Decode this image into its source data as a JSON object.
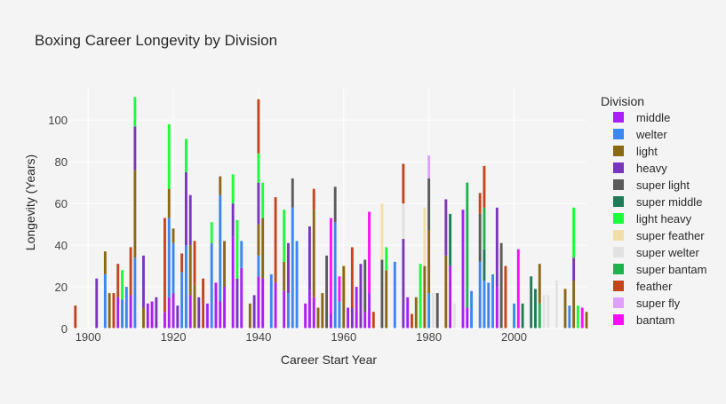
{
  "chart_data": {
    "type": "bar",
    "barmode": "stack",
    "title": "Boxing Career Longevity by Division",
    "xlabel": "Career Start Year",
    "ylabel": "Longevity (Years)",
    "xlim": [
      1896,
      2017
    ],
    "ylim": [
      0,
      115
    ],
    "xticks": [
      1900,
      1920,
      1940,
      1960,
      1980,
      2000
    ],
    "yticks": [
      0,
      20,
      40,
      60,
      80,
      100
    ],
    "grid": true,
    "legend_title": "Division",
    "legend_position": "right",
    "series": [
      {
        "name": "middle",
        "color": "#ab1ff7"
      },
      {
        "name": "welter",
        "color": "#3b86f0"
      },
      {
        "name": "light",
        "color": "#8b6914"
      },
      {
        "name": "heavy",
        "color": "#7a35bd"
      },
      {
        "name": "super light",
        "color": "#5a5a5a"
      },
      {
        "name": "super middle",
        "color": "#1f7a57"
      },
      {
        "name": "light heavy",
        "color": "#1cff38"
      },
      {
        "name": "super feather",
        "color": "#f2deaa"
      },
      {
        "name": "super welter",
        "color": "#e2e2e2"
      },
      {
        "name": "super bantam",
        "color": "#1fb350"
      },
      {
        "name": "feather",
        "color": "#c4451c"
      },
      {
        "name": "super fly",
        "color": "#dda0fb"
      },
      {
        "name": "bantam",
        "color": "#fc0dfc"
      }
    ],
    "bars": [
      {
        "x": 1897,
        "segments": [
          [
            "feather",
            11
          ]
        ]
      },
      {
        "x": 1902,
        "segments": [
          [
            "heavy",
            24
          ]
        ]
      },
      {
        "x": 1904,
        "segments": [
          [
            "welter",
            26
          ],
          [
            "light",
            11
          ]
        ]
      },
      {
        "x": 1905,
        "segments": [
          [
            "light",
            17
          ]
        ]
      },
      {
        "x": 1906,
        "segments": [
          [
            "feather",
            17
          ]
        ]
      },
      {
        "x": 1907,
        "segments": [
          [
            "middle",
            15
          ],
          [
            "feather",
            16
          ]
        ]
      },
      {
        "x": 1908,
        "segments": [
          [
            "welter",
            14
          ],
          [
            "light heavy",
            14
          ]
        ]
      },
      {
        "x": 1909,
        "segments": [
          [
            "welter",
            20
          ]
        ]
      },
      {
        "x": 1910,
        "segments": [
          [
            "middle",
            16
          ],
          [
            "feather",
            23
          ]
        ]
      },
      {
        "x": 1911,
        "segments": [
          [
            "welter",
            34
          ],
          [
            "light",
            42
          ],
          [
            "heavy",
            21
          ],
          [
            "light heavy",
            14
          ]
        ]
      },
      {
        "x": 1913,
        "segments": [
          [
            "light",
            10
          ],
          [
            "heavy",
            25
          ]
        ]
      },
      {
        "x": 1914,
        "segments": [
          [
            "middle",
            12
          ]
        ]
      },
      {
        "x": 1915,
        "segments": [
          [
            "middle",
            13
          ]
        ]
      },
      {
        "x": 1916,
        "segments": [
          [
            "heavy",
            15
          ]
        ]
      },
      {
        "x": 1918,
        "segments": [
          [
            "middle",
            8
          ],
          [
            "feather",
            45
          ]
        ]
      },
      {
        "x": 1919,
        "segments": [
          [
            "middle",
            15
          ],
          [
            "welter",
            38
          ],
          [
            "light",
            14
          ],
          [
            "light heavy",
            31
          ]
        ]
      },
      {
        "x": 1920,
        "segments": [
          [
            "middle",
            17
          ],
          [
            "welter",
            24
          ],
          [
            "light",
            7
          ]
        ]
      },
      {
        "x": 1921,
        "segments": [
          [
            "heavy",
            11
          ]
        ]
      },
      {
        "x": 1922,
        "segments": [
          [
            "welter",
            27
          ],
          [
            "feather",
            9
          ]
        ]
      },
      {
        "x": 1923,
        "segments": [
          [
            "welter",
            40
          ],
          [
            "heavy",
            35
          ],
          [
            "light heavy",
            16
          ]
        ]
      },
      {
        "x": 1924,
        "segments": [
          [
            "middle",
            16
          ],
          [
            "light",
            24
          ],
          [
            "heavy",
            24
          ]
        ]
      },
      {
        "x": 1925,
        "segments": [
          [
            "light",
            21
          ],
          [
            "feather",
            21
          ]
        ]
      },
      {
        "x": 1926,
        "segments": [
          [
            "heavy",
            15
          ]
        ]
      },
      {
        "x": 1927,
        "segments": [
          [
            "feather",
            24
          ]
        ]
      },
      {
        "x": 1928,
        "segments": [
          [
            "middle",
            12
          ]
        ]
      },
      {
        "x": 1929,
        "segments": [
          [
            "welter",
            41
          ],
          [
            "light heavy",
            10
          ]
        ]
      },
      {
        "x": 1930,
        "segments": [
          [
            "middle",
            22
          ]
        ]
      },
      {
        "x": 1931,
        "segments": [
          [
            "middle",
            13
          ],
          [
            "welter",
            51
          ],
          [
            "light",
            9
          ]
        ]
      },
      {
        "x": 1932,
        "segments": [
          [
            "middle",
            20
          ],
          [
            "light",
            22
          ]
        ]
      },
      {
        "x": 1934,
        "segments": [
          [
            "middle",
            44
          ],
          [
            "heavy",
            16
          ],
          [
            "light heavy",
            14
          ]
        ]
      },
      {
        "x": 1935,
        "segments": [
          [
            "heavy",
            24
          ],
          [
            "light heavy",
            28
          ]
        ]
      },
      {
        "x": 1936,
        "segments": [
          [
            "middle",
            29
          ],
          [
            "welter",
            13
          ]
        ]
      },
      {
        "x": 1938,
        "segments": [
          [
            "light",
            12
          ]
        ]
      },
      {
        "x": 1939,
        "segments": [
          [
            "heavy",
            16
          ]
        ]
      },
      {
        "x": 1940,
        "segments": [
          [
            "middle",
            25
          ],
          [
            "welter",
            10
          ],
          [
            "light",
            15
          ],
          [
            "heavy",
            20
          ],
          [
            "light heavy",
            14
          ],
          [
            "feather",
            26
          ]
        ]
      },
      {
        "x": 1941,
        "segments": [
          [
            "middle",
            24
          ],
          [
            "light",
            29
          ],
          [
            "light heavy",
            17
          ]
        ]
      },
      {
        "x": 1943,
        "segments": [
          [
            "welter",
            26
          ]
        ]
      },
      {
        "x": 1944,
        "segments": [
          [
            "middle",
            22
          ],
          [
            "feather",
            41
          ]
        ]
      },
      {
        "x": 1946,
        "segments": [
          [
            "middle",
            18
          ],
          [
            "light",
            14
          ],
          [
            "light heavy",
            25
          ]
        ]
      },
      {
        "x": 1947,
        "segments": [
          [
            "welter",
            17
          ],
          [
            "heavy",
            24
          ]
        ]
      },
      {
        "x": 1948,
        "segments": [
          [
            "welter",
            58
          ],
          [
            "super light",
            14
          ]
        ]
      },
      {
        "x": 1949,
        "segments": [
          [
            "welter",
            42
          ]
        ]
      },
      {
        "x": 1951,
        "segments": [
          [
            "middle",
            12
          ]
        ]
      },
      {
        "x": 1952,
        "segments": [
          [
            "middle",
            18
          ],
          [
            "heavy",
            31
          ]
        ]
      },
      {
        "x": 1953,
        "segments": [
          [
            "middle",
            15
          ],
          [
            "light",
            42
          ],
          [
            "feather",
            10
          ]
        ]
      },
      {
        "x": 1954,
        "segments": [
          [
            "light",
            10
          ]
        ]
      },
      {
        "x": 1955,
        "segments": [
          [
            "light",
            17
          ]
        ]
      },
      {
        "x": 1956,
        "segments": [
          [
            "super light",
            35
          ]
        ]
      },
      {
        "x": 1957,
        "segments": [
          [
            "middle",
            7
          ],
          [
            "bantam",
            46
          ]
        ]
      },
      {
        "x": 1958,
        "segments": [
          [
            "welter",
            51
          ],
          [
            "super light",
            17
          ]
        ]
      },
      {
        "x": 1959,
        "segments": [
          [
            "welter",
            13
          ],
          [
            "bantam",
            12
          ]
        ]
      },
      {
        "x": 1960,
        "segments": [
          [
            "light",
            30
          ]
        ]
      },
      {
        "x": 1961,
        "segments": [
          [
            "middle",
            10
          ]
        ]
      },
      {
        "x": 1962,
        "segments": [
          [
            "heavy",
            10
          ],
          [
            "feather",
            29
          ]
        ]
      },
      {
        "x": 1963,
        "segments": [
          [
            "middle",
            20
          ]
        ]
      },
      {
        "x": 1964,
        "segments": [
          [
            "heavy",
            31
          ]
        ]
      },
      {
        "x": 1965,
        "segments": [
          [
            "middle",
            8
          ],
          [
            "super light",
            25
          ]
        ]
      },
      {
        "x": 1966,
        "segments": [
          [
            "middle",
            17
          ],
          [
            "bantam",
            39
          ]
        ]
      },
      {
        "x": 1967,
        "segments": [
          [
            "feather",
            8
          ]
        ]
      },
      {
        "x": 1969,
        "segments": [
          [
            "super light",
            33
          ],
          [
            "super feather",
            27
          ]
        ]
      },
      {
        "x": 1970,
        "segments": [
          [
            "light",
            28
          ],
          [
            "light heavy",
            11
          ]
        ]
      },
      {
        "x": 1972,
        "segments": [
          [
            "welter",
            32
          ]
        ]
      },
      {
        "x": 1974,
        "segments": [
          [
            "heavy",
            43
          ],
          [
            "super welter",
            17
          ],
          [
            "feather",
            19
          ]
        ]
      },
      {
        "x": 1975,
        "segments": [
          [
            "middle",
            15
          ]
        ]
      },
      {
        "x": 1976,
        "segments": [
          [
            "feather",
            7
          ]
        ]
      },
      {
        "x": 1977,
        "segments": [
          [
            "light",
            15
          ]
        ]
      },
      {
        "x": 1978,
        "segments": [
          [
            "light heavy",
            31
          ]
        ]
      },
      {
        "x": 1979,
        "segments": [
          [
            "light",
            30
          ],
          [
            "super feather",
            28
          ]
        ]
      },
      {
        "x": 1980,
        "segments": [
          [
            "welter",
            17
          ],
          [
            "light",
            30
          ],
          [
            "super light",
            25
          ],
          [
            "super fly",
            11
          ]
        ]
      },
      {
        "x": 1981,
        "segments": [
          [
            "super welter",
            17
          ]
        ]
      },
      {
        "x": 1982,
        "segments": [
          [
            "super light",
            17
          ]
        ]
      },
      {
        "x": 1984,
        "segments": [
          [
            "light",
            35
          ],
          [
            "heavy",
            27
          ]
        ]
      },
      {
        "x": 1985,
        "segments": [
          [
            "middle",
            30
          ],
          [
            "super middle",
            25
          ]
        ]
      },
      {
        "x": 1986,
        "segments": [
          [
            "super welter",
            12
          ]
        ]
      },
      {
        "x": 1988,
        "segments": [
          [
            "middle",
            57
          ]
        ]
      },
      {
        "x": 1989,
        "segments": [
          [
            "middle",
            10
          ],
          [
            "super bantam",
            60
          ]
        ]
      },
      {
        "x": 1990,
        "segments": [
          [
            "welter",
            18
          ]
        ]
      },
      {
        "x": 1992,
        "segments": [
          [
            "welter",
            32
          ],
          [
            "super light",
            23
          ],
          [
            "feather",
            10
          ]
        ]
      },
      {
        "x": 1993,
        "segments": [
          [
            "welter",
            23
          ],
          [
            "super middle",
            15
          ],
          [
            "super bantam",
            20
          ],
          [
            "feather",
            20
          ]
        ]
      },
      {
        "x": 1994,
        "segments": [
          [
            "welter",
            22
          ]
        ]
      },
      {
        "x": 1995,
        "segments": [
          [
            "welter",
            26
          ]
        ]
      },
      {
        "x": 1996,
        "segments": [
          [
            "middle",
            20
          ],
          [
            "heavy",
            38
          ]
        ]
      },
      {
        "x": 1997,
        "segments": [
          [
            "super light",
            41
          ]
        ]
      },
      {
        "x": 1998,
        "segments": [
          [
            "feather",
            30
          ]
        ]
      },
      {
        "x": 2000,
        "segments": [
          [
            "welter",
            12
          ]
        ]
      },
      {
        "x": 2001,
        "segments": [
          [
            "bantam",
            38
          ]
        ]
      },
      {
        "x": 2002,
        "segments": [
          [
            "super middle",
            12
          ]
        ]
      },
      {
        "x": 2004,
        "segments": [
          [
            "super middle",
            25
          ]
        ]
      },
      {
        "x": 2005,
        "segments": [
          [
            "super middle",
            19
          ]
        ]
      },
      {
        "x": 2006,
        "segments": [
          [
            "super bantam",
            12
          ],
          [
            "light",
            19
          ]
        ]
      },
      {
        "x": 2007,
        "segments": [
          [
            "super welter",
            16
          ]
        ]
      },
      {
        "x": 2008,
        "segments": [
          [
            "super welter",
            16
          ]
        ]
      },
      {
        "x": 2010,
        "segments": [
          [
            "super welter",
            23
          ]
        ]
      },
      {
        "x": 2012,
        "segments": [
          [
            "light",
            19
          ]
        ]
      },
      {
        "x": 2013,
        "segments": [
          [
            "welter",
            11
          ]
        ]
      },
      {
        "x": 2014,
        "segments": [
          [
            "light",
            23
          ],
          [
            "heavy",
            11
          ],
          [
            "light heavy",
            24
          ]
        ]
      },
      {
        "x": 2015,
        "segments": [
          [
            "light heavy",
            11
          ]
        ]
      },
      {
        "x": 2016,
        "segments": [
          [
            "bantam",
            10
          ]
        ]
      },
      {
        "x": 2017,
        "segments": [
          [
            "light",
            8
          ]
        ]
      }
    ]
  }
}
